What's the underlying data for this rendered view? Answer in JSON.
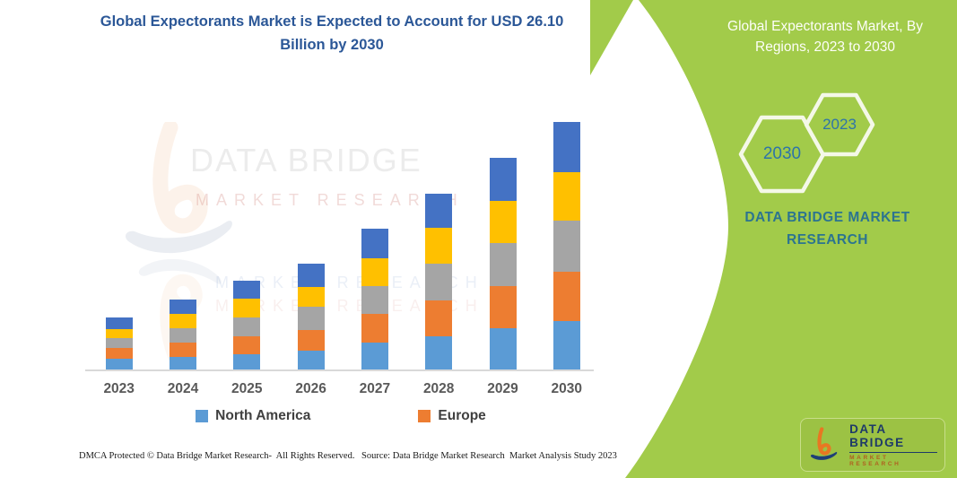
{
  "title": {
    "text": "Global Expectorants Market is Expected to Account for USD 26.10 Billion by 2030"
  },
  "right_panel": {
    "heading": "Global Expectorants Market, By Regions, 2023 to 2030",
    "hexagon_back_year": "2030",
    "hexagon_front_year": "2023",
    "brand_text": "DATA BRIDGE MARKET RESEARCH",
    "panel_color": "#A2CB4A"
  },
  "watermark": {
    "title": "DATA BRIDGE",
    "subtitle": "MARKET RESEARCH"
  },
  "logo_chip": {
    "brand": "DATA BRIDGE",
    "tagline": "MARKET RESEARCH"
  },
  "footer": {
    "left": "DMCA Protected © Data Bridge Market Research-  All Rights Reserved.",
    "right": "Source: Data Bridge Market Research  Market Analysis Study 2023"
  },
  "chart_data": {
    "type": "bar",
    "stacked": true,
    "title": "Global Expectorants Market is Expected to Account for USD 26.10 Billion by 2030",
    "unit": "USD Billion",
    "grid": false,
    "legend_position": "bottom",
    "ylim": [
      0,
      27.6
    ],
    "categories": [
      "2023",
      "2024",
      "2025",
      "2026",
      "2027",
      "2028",
      "2029",
      "2030"
    ],
    "series": [
      {
        "name": "North America",
        "color": "#5B9BD5",
        "values": [
          1.2,
          1.44,
          1.7,
          2.1,
          2.96,
          3.62,
          4.4,
          5.22
        ]
      },
      {
        "name": "Europe",
        "color": "#ED7D31",
        "values": [
          1.16,
          1.51,
          1.89,
          2.17,
          2.95,
          3.71,
          4.43,
          5.19
        ]
      },
      {
        "name": "",
        "color": "#A5A5A5",
        "values": [
          1.04,
          1.48,
          1.95,
          2.45,
          2.92,
          3.84,
          4.55,
          5.34
        ]
      },
      {
        "name": "",
        "color": "#FFC000",
        "values": [
          0.94,
          1.51,
          2.04,
          2.05,
          2.95,
          3.85,
          4.4,
          5.09
        ]
      },
      {
        "name": "",
        "color": "#4472C4",
        "values": [
          1.26,
          1.48,
          1.83,
          2.42,
          3.08,
          3.54,
          4.53,
          5.26
        ]
      }
    ],
    "totals": [
      5.6,
      7.42,
      9.41,
      11.19,
      14.86,
      18.56,
      22.31,
      26.1
    ],
    "legend": [
      {
        "label": "North America",
        "color": "#5B9BD5"
      },
      {
        "label": "Europe",
        "color": "#ED7D31"
      }
    ]
  }
}
